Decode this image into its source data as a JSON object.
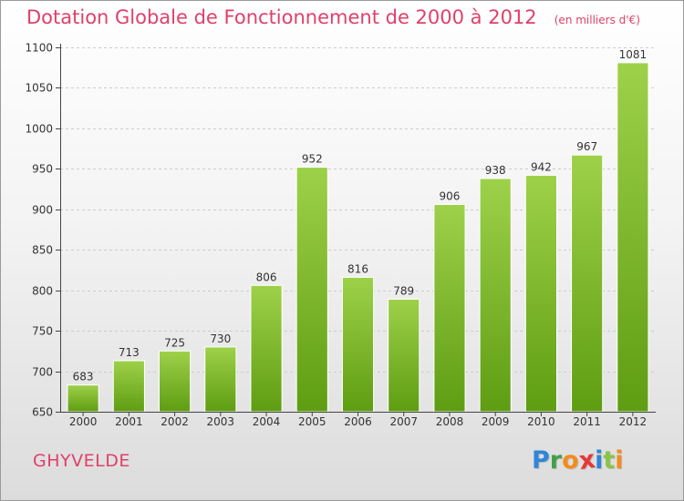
{
  "header": {
    "title": "Dotation Globale de Fonctionnement de 2000 à 2012",
    "subtitle": "(en milliers d'€)"
  },
  "footer": {
    "commune": "GHYVELDE",
    "brand": "Proxiti",
    "brand_letters": [
      {
        "char": "P",
        "color": "#2f86d6"
      },
      {
        "char": "r",
        "color": "#43a047"
      },
      {
        "char": "o",
        "color": "#f28c1e"
      },
      {
        "char": "x",
        "color": "#e53935"
      },
      {
        "char": "i",
        "color": "#2f86d6"
      },
      {
        "char": "t",
        "color": "#8bc34a"
      },
      {
        "char": "i",
        "color": "#f28c1e"
      }
    ]
  },
  "colors": {
    "accent": "#e0406a",
    "bar_top": "#9ed14a",
    "bar_bottom": "#5e9d12",
    "grid": "#cccccc",
    "axis": "#444444",
    "text": "#333333"
  },
  "chart_data": {
    "type": "bar",
    "title": "Dotation Globale de Fonctionnement de 2000 à 2012",
    "subtitle": "(en milliers d'€)",
    "xlabel": "",
    "ylabel": "",
    "categories": [
      "2000",
      "2001",
      "2002",
      "2003",
      "2004",
      "2005",
      "2006",
      "2007",
      "2008",
      "2009",
      "2010",
      "2011",
      "2012"
    ],
    "values": [
      683,
      713,
      725,
      730,
      806,
      952,
      816,
      789,
      906,
      938,
      942,
      967,
      1081
    ],
    "ylim": [
      650,
      1100
    ],
    "yticks": [
      650,
      700,
      750,
      800,
      850,
      900,
      950,
      1000,
      1050,
      1100
    ],
    "grid": "horizontal",
    "data_labels": true
  }
}
